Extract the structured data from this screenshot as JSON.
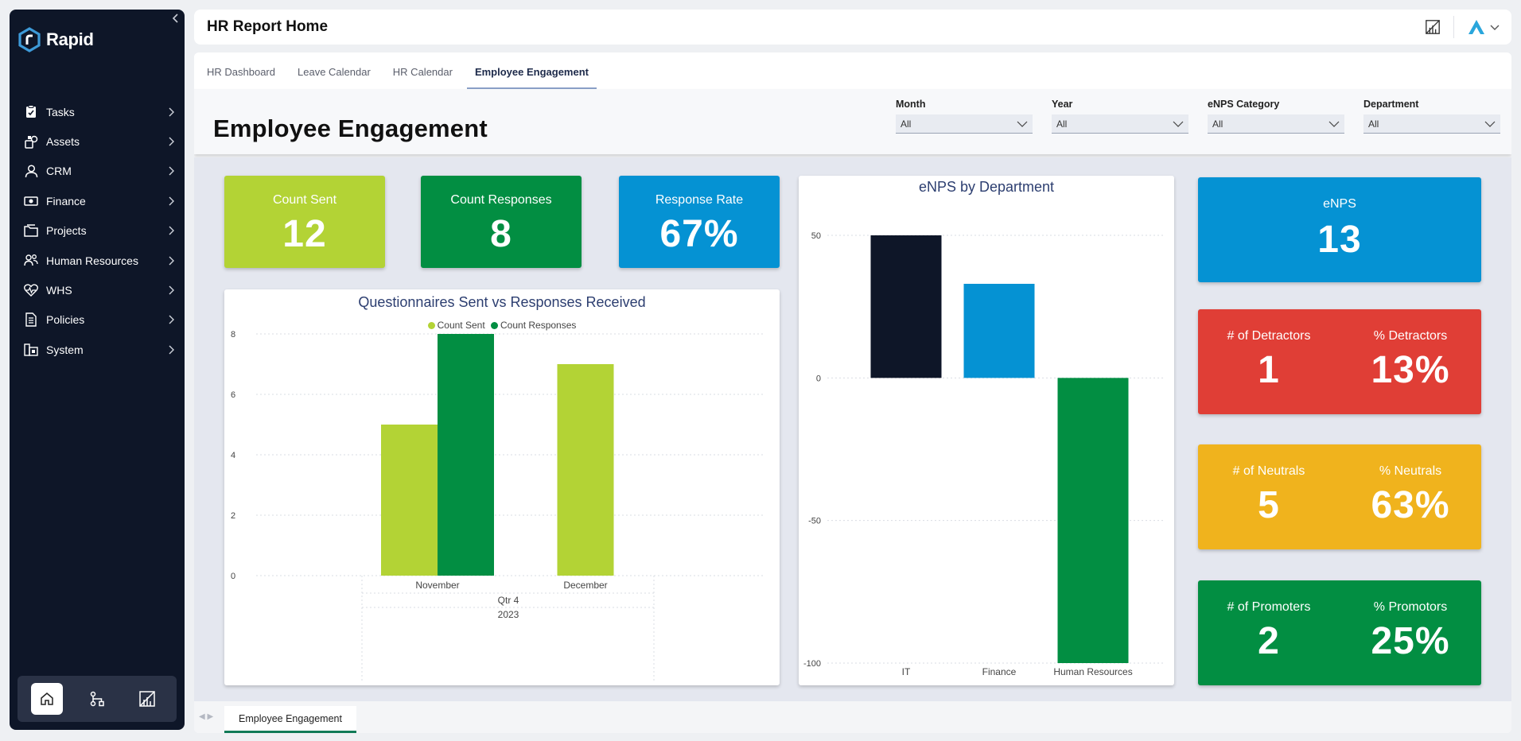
{
  "brand": {
    "name": "Rapid",
    "accent": "#3d9ad8"
  },
  "sidebar": {
    "items": [
      {
        "label": "Tasks",
        "icon": "clipboard-icon"
      },
      {
        "label": "Assets",
        "icon": "assets-icon"
      },
      {
        "label": "CRM",
        "icon": "person-icon"
      },
      {
        "label": "Finance",
        "icon": "money-icon"
      },
      {
        "label": "Projects",
        "icon": "folder-icon"
      },
      {
        "label": "Human Resources",
        "icon": "people-icon"
      },
      {
        "label": "WHS",
        "icon": "heartbeat-icon"
      },
      {
        "label": "Policies",
        "icon": "document-icon"
      },
      {
        "label": "System",
        "icon": "system-icon"
      }
    ],
    "dock": [
      "home-icon",
      "workflow-icon",
      "report-icon"
    ]
  },
  "header": {
    "title": "HR Report Home"
  },
  "tabs": [
    {
      "label": "HR Dashboard",
      "active": false
    },
    {
      "label": "Leave Calendar",
      "active": false
    },
    {
      "label": "HR Calendar",
      "active": false
    },
    {
      "label": "Employee Engagement",
      "active": true
    }
  ],
  "page_title": "Employee Engagement",
  "filters": [
    {
      "label": "Month",
      "value": "All"
    },
    {
      "label": "Year",
      "value": "All"
    },
    {
      "label": "eNPS Category",
      "value": "All"
    },
    {
      "label": "Department",
      "value": "All"
    }
  ],
  "kpis": {
    "count_sent": {
      "label": "Count Sent",
      "value": "12",
      "color": "#b3d335"
    },
    "count_responses": {
      "label": "Count Responses",
      "value": "8",
      "color": "#028e42"
    },
    "response_rate": {
      "label": "Response Rate",
      "value": "67%",
      "color": "#0592d3"
    },
    "enps": {
      "label": "eNPS",
      "value": "13",
      "color": "#0592d3"
    },
    "detractors": {
      "count_label": "# of Detractors",
      "count": "1",
      "pct_label": "% Detractors",
      "pct": "13%",
      "color": "#e03e36"
    },
    "neutrals": {
      "count_label": "# of Neutrals",
      "count": "5",
      "pct_label": "% Neutrals",
      "pct": "63%",
      "color": "#f0b31d"
    },
    "promoters": {
      "count_label": "# of Promoters",
      "count": "2",
      "pct_label": "% Promotors",
      "pct": "25%",
      "color": "#028e42"
    }
  },
  "chart_data": [
    {
      "type": "bar",
      "title": "Questionnaires Sent vs Responses Received",
      "categories": [
        "November",
        "December"
      ],
      "group_labels": [
        "Qtr 4",
        "2023"
      ],
      "series": [
        {
          "name": "Count Sent",
          "values": [
            5,
            7
          ],
          "color": "#b3d335"
        },
        {
          "name": "Count Responses",
          "values": [
            8,
            null
          ],
          "color": "#028e42"
        }
      ],
      "yticks": [
        0,
        2,
        4,
        6,
        8
      ],
      "ylim": [
        0,
        8
      ],
      "grid": true,
      "legend": "top-center"
    },
    {
      "type": "bar",
      "title": "eNPS by Department",
      "categories": [
        "IT",
        "Finance",
        "Human Resources"
      ],
      "values": [
        50,
        33,
        -100
      ],
      "colors": [
        "#0e1628",
        "#0592d3",
        "#028e42"
      ],
      "yticks": [
        -100,
        -50,
        0,
        50
      ],
      "ylim": [
        -100,
        50
      ],
      "grid": true
    }
  ],
  "page_tabs": [
    {
      "label": "Employee Engagement",
      "active": true
    }
  ]
}
